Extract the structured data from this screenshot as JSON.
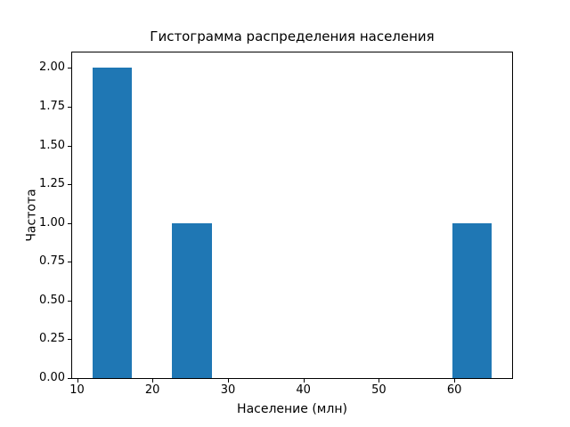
{
  "chart_data": {
    "type": "bar",
    "subtype": "histogram",
    "title": "Гистограмма распределения населения",
    "xlabel": "Население (млн)",
    "ylabel": "Частота",
    "bar_color": "#1f77b4",
    "background_color": "#ffffff",
    "spine_color": "#000000",
    "grid": false,
    "legend": "none",
    "xlim": [
      9.35,
      67.65
    ],
    "ylim": [
      0,
      2.1
    ],
    "bars": [
      {
        "x0": 12.0,
        "x1": 17.3,
        "count": 2
      },
      {
        "x0": 22.6,
        "x1": 27.9,
        "count": 1
      },
      {
        "x0": 59.7,
        "x1": 65.0,
        "count": 1
      }
    ],
    "xticks": [
      {
        "v": 10,
        "label": "10"
      },
      {
        "v": 20,
        "label": "20"
      },
      {
        "v": 30,
        "label": "30"
      },
      {
        "v": 40,
        "label": "40"
      },
      {
        "v": 50,
        "label": "50"
      },
      {
        "v": 60,
        "label": "60"
      }
    ],
    "yticks": [
      {
        "v": 0.0,
        "label": "0.00"
      },
      {
        "v": 0.25,
        "label": "0.25"
      },
      {
        "v": 0.5,
        "label": "0.50"
      },
      {
        "v": 0.75,
        "label": "0.75"
      },
      {
        "v": 1.0,
        "label": "1.00"
      },
      {
        "v": 1.25,
        "label": "1.25"
      },
      {
        "v": 1.5,
        "label": "1.50"
      },
      {
        "v": 1.75,
        "label": "1.75"
      },
      {
        "v": 2.0,
        "label": "2.00"
      }
    ]
  }
}
